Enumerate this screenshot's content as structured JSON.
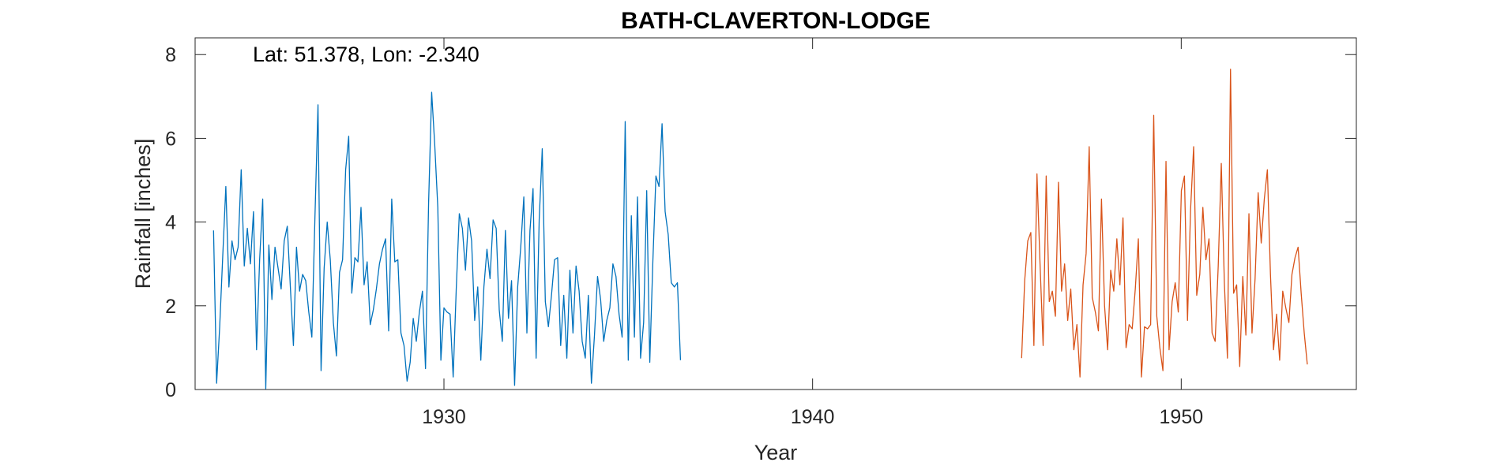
{
  "chart_data": {
    "type": "line",
    "title": "BATH-CLAVERTON-LODGE",
    "annotation": "Lat: 51.378, Lon: -2.340",
    "xlabel": "Year",
    "ylabel": "Rainfall [inches]",
    "xlim": [
      1923.25,
      1954.75
    ],
    "ylim": [
      0,
      8.4
    ],
    "xticks": [
      1930,
      1940,
      1950
    ],
    "yticks": [
      0,
      2,
      4,
      6,
      8
    ],
    "grid": false,
    "legend": "none",
    "series": [
      {
        "color": "#0072BD",
        "start_year": 1923.75,
        "step": 0.0833333,
        "values": [
          3.8,
          0.15,
          1.5,
          3.2,
          4.85,
          2.45,
          3.55,
          3.1,
          3.4,
          5.25,
          2.95,
          3.85,
          3.0,
          4.25,
          0.95,
          3.1,
          4.55,
          0.02,
          3.45,
          2.15,
          3.4,
          2.9,
          2.4,
          3.55,
          3.9,
          2.45,
          1.05,
          3.4,
          2.35,
          2.75,
          2.6,
          1.85,
          1.25,
          4.1,
          6.8,
          0.45,
          2.9,
          4.0,
          3.1,
          1.6,
          0.8,
          2.8,
          3.1,
          5.25,
          6.05,
          2.3,
          3.15,
          3.05,
          4.35,
          2.5,
          3.05,
          1.55,
          1.9,
          2.4,
          3.0,
          3.35,
          3.6,
          1.4,
          4.55,
          3.05,
          3.1,
          1.35,
          1.05,
          0.2,
          0.65,
          1.7,
          1.15,
          1.85,
          2.35,
          0.5,
          4.45,
          7.1,
          5.85,
          4.35,
          0.7,
          1.95,
          1.85,
          1.8,
          0.3,
          2.4,
          4.2,
          3.85,
          2.85,
          4.1,
          3.55,
          1.65,
          2.45,
          0.7,
          2.45,
          3.35,
          2.65,
          4.05,
          3.85,
          1.9,
          1.15,
          3.8,
          1.7,
          2.6,
          0.1,
          2.45,
          3.4,
          4.6,
          1.35,
          3.8,
          4.8,
          0.75,
          4.05,
          5.75,
          2.1,
          1.5,
          2.25,
          3.1,
          3.15,
          1.05,
          2.25,
          0.75,
          2.85,
          1.35,
          2.95,
          2.35,
          1.15,
          0.75,
          2.25,
          0.15,
          1.3,
          2.7,
          2.15,
          1.15,
          1.65,
          1.95,
          3.0,
          2.7,
          1.8,
          1.25,
          6.4,
          0.7,
          4.15,
          1.25,
          4.6,
          0.75,
          1.6,
          4.75,
          0.65,
          3.05,
          5.1,
          4.85,
          6.35,
          4.25,
          3.7,
          2.55,
          2.45,
          2.55,
          0.7
        ]
      },
      {
        "color": "#D95319",
        "start_year": 1945.67,
        "step": 0.0833333,
        "values": [
          0.75,
          2.6,
          3.55,
          3.75,
          1.05,
          5.15,
          3.0,
          1.05,
          5.1,
          2.1,
          2.35,
          1.75,
          4.95,
          2.35,
          3.0,
          1.65,
          2.4,
          0.95,
          1.55,
          0.3,
          2.5,
          3.25,
          5.8,
          2.2,
          1.85,
          1.4,
          4.55,
          2.0,
          0.95,
          2.85,
          2.35,
          3.6,
          2.5,
          4.1,
          1.0,
          1.55,
          1.45,
          2.4,
          3.6,
          0.3,
          1.5,
          1.45,
          1.55,
          6.55,
          1.75,
          1.0,
          0.45,
          5.45,
          0.95,
          2.1,
          2.55,
          1.85,
          4.75,
          5.1,
          1.65,
          4.3,
          5.8,
          2.25,
          2.75,
          4.35,
          3.1,
          3.6,
          1.35,
          1.15,
          2.95,
          5.4,
          2.55,
          0.75,
          7.65,
          2.3,
          2.5,
          0.55,
          2.7,
          1.3,
          4.2,
          1.35,
          2.65,
          4.7,
          3.5,
          4.55,
          5.25,
          2.75,
          0.95,
          1.8,
          0.7,
          2.35,
          1.95,
          1.6,
          2.75,
          3.15,
          3.4,
          2.3,
          1.35,
          0.6
        ]
      }
    ]
  }
}
